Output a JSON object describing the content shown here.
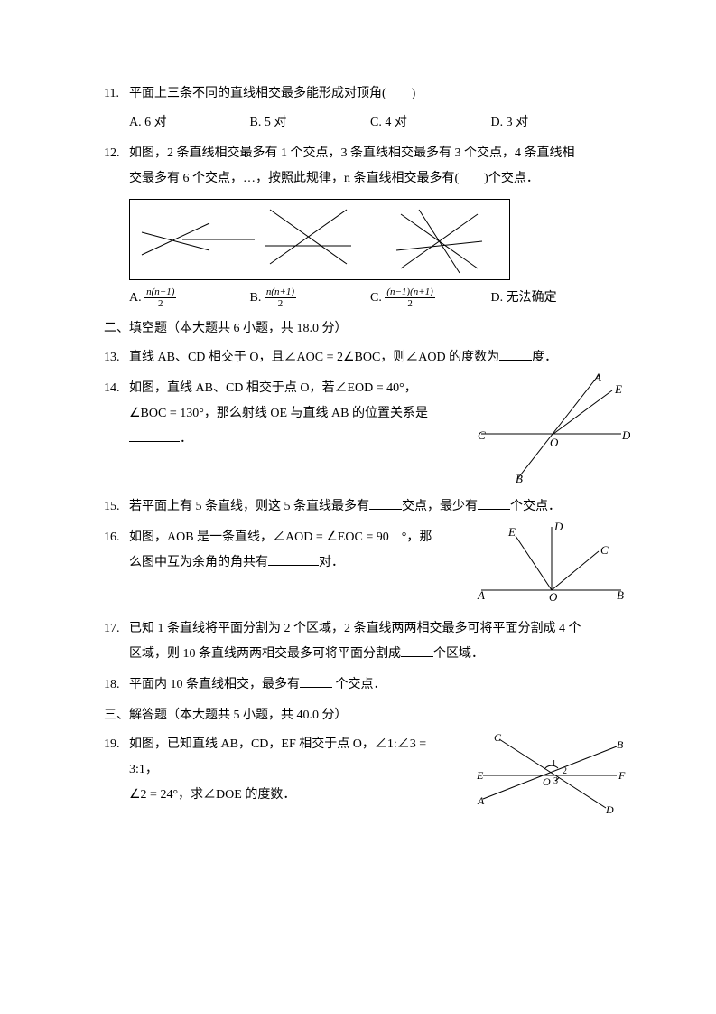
{
  "q11": {
    "num": "11.",
    "text": "平面上三条不同的直线相交最多能形成对顶角(　　)",
    "opts": {
      "A": "A. 6 对",
      "B": "B. 5 对",
      "C": "C. 4 对",
      "D": "D. 3 对"
    }
  },
  "q12": {
    "num": "12.",
    "line1": "如图，2 条直线相交最多有 1 个交点，3 条直线相交最多有 3 个交点，4 条直线相",
    "line2": "交最多有 6 个交点，…，按照此规律，n 条直线相交最多有(　　)个交点．",
    "optA_lbl": "A.",
    "optA_num": "n(n−1)",
    "optA_den": "2",
    "optB_lbl": "B.",
    "optB_num": "n(n+1)",
    "optB_den": "2",
    "optC_lbl": "C.",
    "optC_num": "(n−1)(n+1)",
    "optC_den": "2",
    "optD": "D. 无法确定",
    "fig": {
      "line_color": "#000000",
      "line_width": 1,
      "panel1": {
        "pts": [
          [
            5,
            55,
            80,
            20
          ],
          [
            5,
            30,
            80,
            50
          ],
          [
            50,
            38,
            130,
            38
          ]
        ]
      },
      "panel2": {
        "pts": [
          [
            5,
            65,
            90,
            5
          ],
          [
            5,
            5,
            90,
            65
          ],
          [
            0,
            45,
            95,
            45
          ]
        ]
      },
      "panel3": {
        "pts": [
          [
            10,
            70,
            95,
            10
          ],
          [
            10,
            10,
            95,
            70
          ],
          [
            5,
            50,
            100,
            40
          ],
          [
            30,
            5,
            75,
            75
          ]
        ]
      }
    }
  },
  "sec2": "二、填空题（本大题共 6 小题，共 18.0 分）",
  "q13": {
    "num": "13.",
    "pre": "直线 AB、CD 相交于 O，且∠AOC = 2∠BOC，则∠AOD 的度数为",
    "post": "度．"
  },
  "q14": {
    "num": "14.",
    "l1": "如图，直线 AB、CD 相交于点 O，若∠EOD = 40°，",
    "l2": "∠BOC = 130°，那么射线 OE 与直线 AB 的位置关系是",
    "l3": "．",
    "fig": {
      "labels": {
        "A": "A",
        "B": "B",
        "C": "C",
        "D": "D",
        "E": "E",
        "O": "O"
      },
      "line_color": "#000000"
    }
  },
  "q15": {
    "num": "15.",
    "pre": "若平面上有 5 条直线，则这 5 条直线最多有",
    "mid": "交点，最少有",
    "post": "个交点．"
  },
  "q16": {
    "num": "16.",
    "l1": "如图，AOB 是一条直线，∠AOD = ∠EOC = 90　°，那",
    "l2_pre": "么图中互为余角的角共有",
    "l2_post": "对．",
    "fig": {
      "labels": {
        "A": "A",
        "B": "B",
        "C": "C",
        "D": "D",
        "E": "E",
        "O": "O"
      },
      "line_color": "#000000"
    }
  },
  "q17": {
    "num": "17.",
    "l1": "已知 1 条直线将平面分割为 2 个区域，2 条直线两两相交最多可将平面分割成 4 个",
    "l2_pre": "区域，则 10 条直线两两相交最多可将平面分割成",
    "l2_post": "个区域．"
  },
  "q18": {
    "num": "18.",
    "pre": "平面内 10 条直线相交，最多有",
    "post": " 个交点．"
  },
  "sec3": "三、解答题（本大题共 5 小题，共 40.0 分）",
  "q19": {
    "num": "19.",
    "l1": "如图，已知直线 AB，CD，EF 相交于点 O，∠1:∠3 = 3:1，",
    "l2": "∠2 = 24°，求∠DOE 的度数．",
    "fig": {
      "labels": {
        "A": "A",
        "B": "B",
        "C": "C",
        "D": "D",
        "E": "E",
        "F": "F",
        "O": "O",
        "n1": "1",
        "n2": "2",
        "n3": "3"
      },
      "line_color": "#000000"
    }
  }
}
